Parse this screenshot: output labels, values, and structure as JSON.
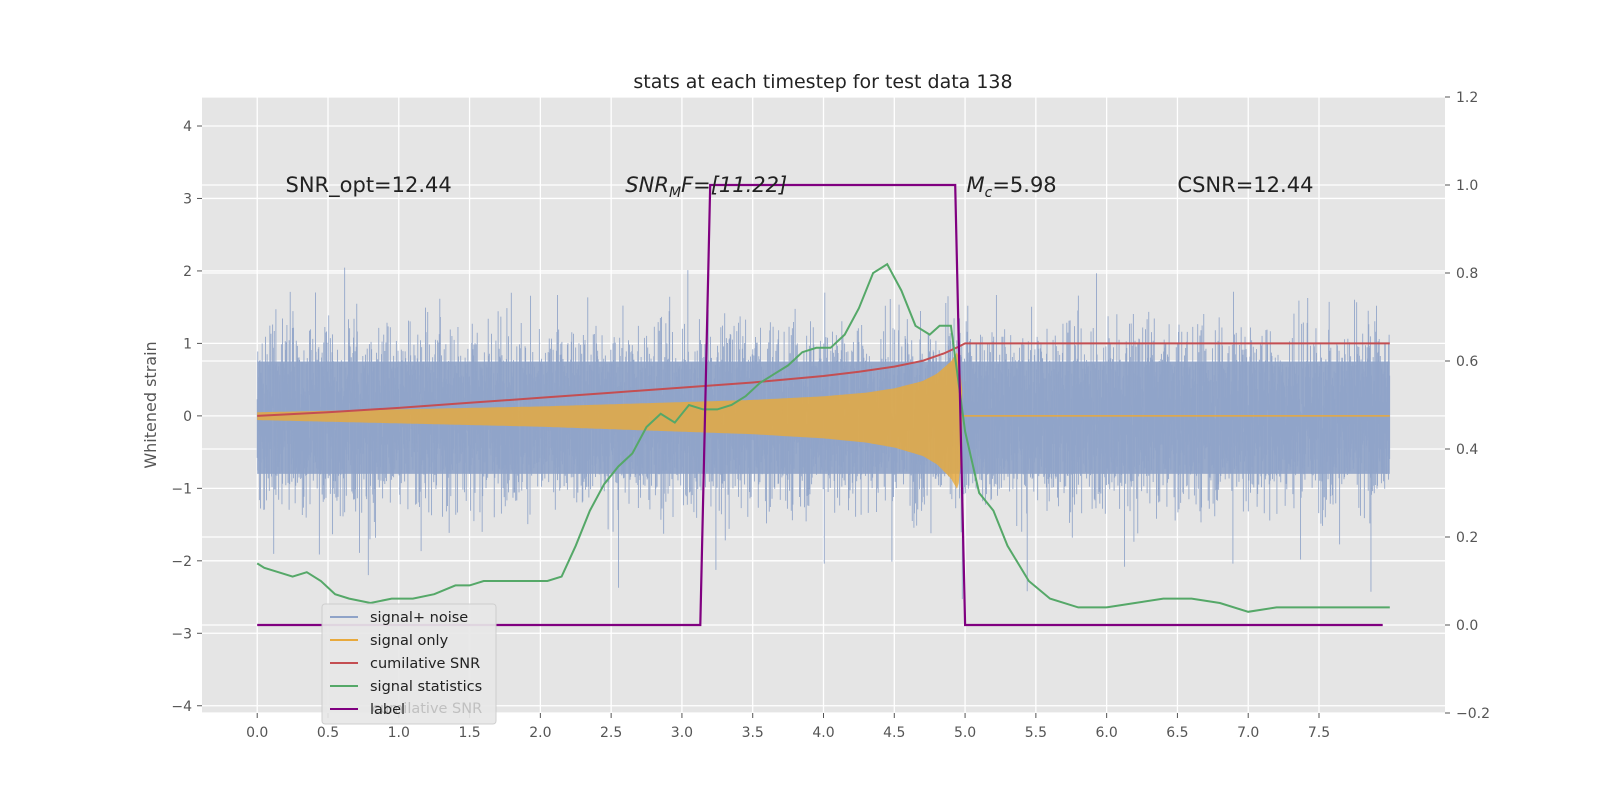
{
  "chart_data": {
    "type": "line",
    "title": "stats at each timestep for test data 138",
    "xlabel": "",
    "ylabel": "Whitened strain",
    "ylabel_right": "",
    "xlim": [
      -0.39,
      8.39
    ],
    "ylim": [
      -4.1,
      4.4
    ],
    "ylim_right": [
      -0.2,
      1.2
    ],
    "x_ticks": [
      "0.0",
      "0.5",
      "1.0",
      "1.5",
      "2.0",
      "2.5",
      "3.0",
      "3.5",
      "4.0",
      "4.5",
      "5.0",
      "5.5",
      "6.0",
      "6.5",
      "7.0",
      "7.5"
    ],
    "y_ticks": [
      "4",
      "3",
      "2",
      "1",
      "0",
      "−1",
      "−2",
      "−3",
      "−4"
    ],
    "y_ticks_right": [
      "1.2",
      "1.0",
      "0.8",
      "0.6",
      "0.4",
      "0.2",
      "0.0",
      "−0.2"
    ],
    "grid": true,
    "legend_placement": "lower-left",
    "annotations": [
      {
        "text": "SNR_opt=12.44",
        "x": 0.2,
        "y": 3.2
      },
      {
        "text_main": "SNR",
        "text_sub": "M",
        "text_rest": "F=[11.22]",
        "x": 2.6,
        "y": 3.2
      },
      {
        "text_main": "M",
        "text_sub": "c",
        "text_rest": "=5.98",
        "x": 5.01,
        "y": 3.2
      },
      {
        "text": "CSNR=12.44",
        "x": 6.5,
        "y": 3.2
      }
    ],
    "series": [
      {
        "name": "signal+ noise",
        "color": "#8fa3c8",
        "axis": "left",
        "style": "dense-noise",
        "x_range": [
          0.0,
          8.0
        ],
        "envelope": [
          -2.0,
          2.5
        ]
      },
      {
        "name": "signal only",
        "color": "#e8a93c",
        "axis": "left",
        "style": "chirp-fill",
        "x": [
          0.0,
          1.0,
          2.0,
          2.5,
          3.0,
          3.5,
          4.0,
          4.3,
          4.5,
          4.7,
          4.8,
          4.9,
          4.95,
          5.0,
          8.0
        ],
        "amplitude": [
          0.05,
          0.09,
          0.13,
          0.16,
          0.19,
          0.22,
          0.27,
          0.32,
          0.38,
          0.48,
          0.58,
          0.75,
          0.9,
          0.0,
          0.0
        ]
      },
      {
        "name": "cumilative SNR",
        "color": "#c44e52",
        "axis": "left",
        "x": [
          0.0,
          0.5,
          1.0,
          1.5,
          2.0,
          2.5,
          3.0,
          3.5,
          4.0,
          4.25,
          4.5,
          4.7,
          4.85,
          4.95,
          5.0,
          8.0
        ],
        "y": [
          0.0,
          0.05,
          0.11,
          0.18,
          0.25,
          0.32,
          0.39,
          0.46,
          0.55,
          0.61,
          0.68,
          0.76,
          0.86,
          0.95,
          1.0,
          1.0
        ]
      },
      {
        "name": "signal statistics",
        "color": "#55a868",
        "axis": "right",
        "x": [
          0.0,
          0.05,
          0.15,
          0.25,
          0.35,
          0.45,
          0.55,
          0.65,
          0.8,
          0.95,
          1.1,
          1.25,
          1.4,
          1.5,
          1.6,
          1.75,
          1.9,
          2.05,
          2.15,
          2.25,
          2.35,
          2.45,
          2.55,
          2.65,
          2.75,
          2.85,
          2.95,
          3.05,
          3.15,
          3.25,
          3.35,
          3.45,
          3.55,
          3.65,
          3.75,
          3.85,
          3.95,
          4.05,
          4.15,
          4.25,
          4.35,
          4.45,
          4.55,
          4.65,
          4.75,
          4.82,
          4.9,
          5.0,
          5.1,
          5.2,
          5.3,
          5.45,
          5.6,
          5.8,
          6.0,
          6.2,
          6.4,
          6.6,
          6.8,
          7.0,
          7.2,
          7.4,
          7.6,
          7.8,
          8.0
        ],
        "y": [
          0.14,
          0.13,
          0.12,
          0.11,
          0.12,
          0.1,
          0.07,
          0.06,
          0.05,
          0.06,
          0.06,
          0.07,
          0.09,
          0.09,
          0.1,
          0.1,
          0.1,
          0.1,
          0.11,
          0.18,
          0.26,
          0.32,
          0.36,
          0.39,
          0.45,
          0.48,
          0.46,
          0.5,
          0.49,
          0.49,
          0.5,
          0.52,
          0.55,
          0.57,
          0.59,
          0.62,
          0.63,
          0.63,
          0.66,
          0.72,
          0.8,
          0.82,
          0.76,
          0.68,
          0.66,
          0.68,
          0.68,
          0.44,
          0.3,
          0.26,
          0.18,
          0.1,
          0.06,
          0.04,
          0.04,
          0.05,
          0.06,
          0.06,
          0.05,
          0.03,
          0.04,
          0.04,
          0.04,
          0.04,
          0.04
        ]
      },
      {
        "name": "label",
        "color": "#800080",
        "axis": "right",
        "x": [
          0.0,
          3.13,
          3.2,
          4.93,
          5.0,
          7.95
        ],
        "y": [
          0.0,
          0.0,
          1.0,
          1.0,
          0.0,
          0.0
        ]
      }
    ],
    "legend_entries": [
      "signal+ noise",
      "signal only",
      "cumilative SNR",
      "signal statistics",
      "label"
    ],
    "legend_ghost_text": "cumilative SNR"
  }
}
